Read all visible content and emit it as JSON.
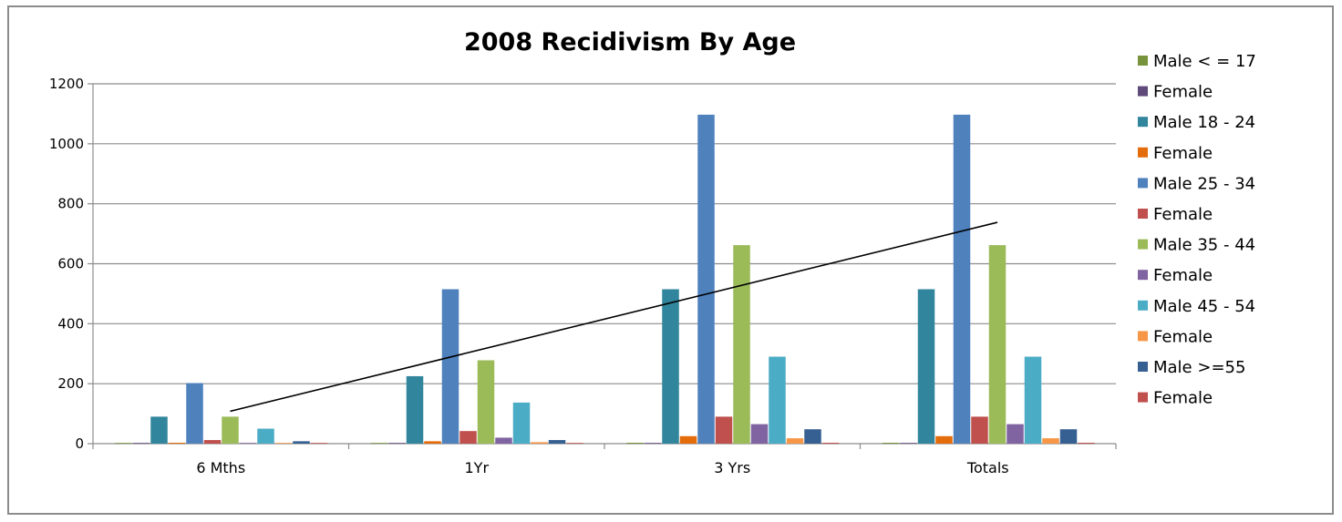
{
  "chart_data": {
    "type": "bar",
    "title": "2008 Recidivism By Age",
    "xlabel": "",
    "ylabel": "",
    "ylim": [
      0,
      1200
    ],
    "yticks": [
      0,
      200,
      400,
      600,
      800,
      1000,
      1200
    ],
    "grid": true,
    "legend_position": "right",
    "categories": [
      "6 Mths",
      "1Yr",
      "3 Yrs",
      "Totals"
    ],
    "series": [
      {
        "name": "Male < = 17",
        "color": "#77933c",
        "values": [
          1,
          2,
          3,
          3
        ]
      },
      {
        "name": "Female",
        "color": "#604a7b",
        "values": [
          0,
          0,
          1,
          1
        ]
      },
      {
        "name": "Male 18 - 24",
        "color": "#31859c",
        "values": [
          90,
          225,
          515,
          515
        ]
      },
      {
        "name": "Female",
        "color": "#e46c0a",
        "values": [
          3,
          8,
          25,
          25
        ]
      },
      {
        "name": "Male 25 - 34",
        "color": "#4f81bd",
        "values": [
          202,
          515,
          1097,
          1097
        ]
      },
      {
        "name": "Female",
        "color": "#c0504d",
        "values": [
          12,
          42,
          90,
          90
        ]
      },
      {
        "name": "Male 35 - 44",
        "color": "#9bbb59",
        "values": [
          90,
          278,
          662,
          662
        ]
      },
      {
        "name": "Female",
        "color": "#8064a2",
        "values": [
          2,
          20,
          65,
          65
        ]
      },
      {
        "name": "Male 45 - 54",
        "color": "#4bacc6",
        "values": [
          50,
          137,
          290,
          290
        ]
      },
      {
        "name": "Female",
        "color": "#f79646",
        "values": [
          2,
          5,
          18,
          18
        ]
      },
      {
        "name": "Male >=55",
        "color": "#376092",
        "values": [
          8,
          12,
          48,
          48
        ]
      },
      {
        "name": "Female",
        "color": "#c0504d",
        "values": [
          1,
          2,
          3,
          3
        ]
      }
    ],
    "trendline": {
      "series": "Male 35 - 44",
      "type": "linear",
      "color": "#000000"
    }
  }
}
